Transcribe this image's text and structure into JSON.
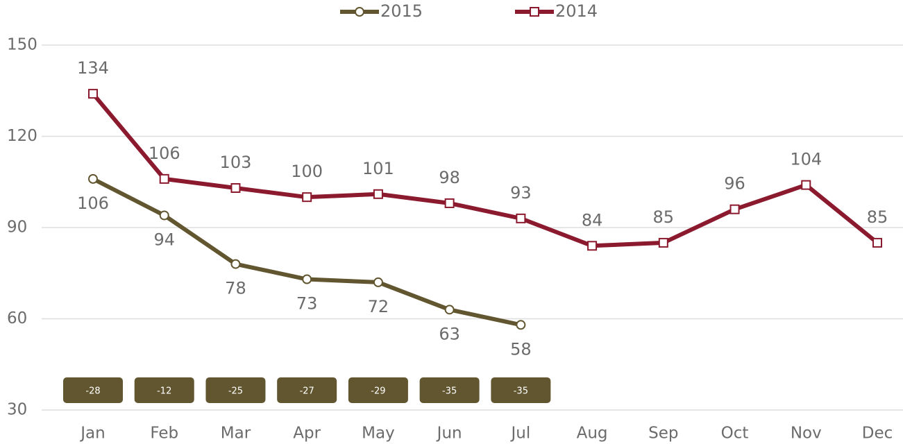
{
  "chart_data": {
    "type": "line",
    "categories": [
      "Jan",
      "Feb",
      "Mar",
      "Apr",
      "May",
      "Jun",
      "Jul",
      "Aug",
      "Sep",
      "Oct",
      "Nov",
      "Dec"
    ],
    "series": [
      {
        "name": "2015",
        "color": "#625630",
        "marker": "circle",
        "values": [
          106,
          94,
          78,
          73,
          72,
          63,
          58,
          null,
          null,
          null,
          null,
          null
        ]
      },
      {
        "name": "2014",
        "color": "#8b1a2e",
        "marker": "square",
        "values": [
          134,
          106,
          103,
          100,
          101,
          98,
          93,
          84,
          85,
          96,
          104,
          85
        ]
      }
    ],
    "differences": [
      -28,
      -12,
      -25,
      -27,
      -29,
      -35,
      -35
    ],
    "ylim": [
      30,
      150
    ],
    "yticks": [
      30,
      60,
      90,
      120,
      150
    ],
    "grid": true,
    "legend": "top"
  }
}
